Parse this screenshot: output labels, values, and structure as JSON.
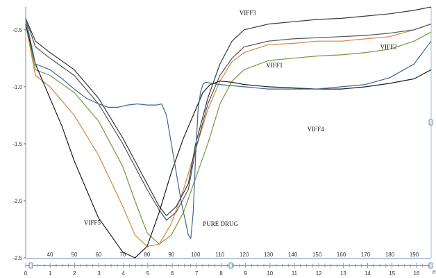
{
  "chart_data": {
    "type": "line",
    "xlabel": "",
    "ylabel": "",
    "xlim": [
      30,
      197
    ],
    "ylim": [
      -2.5,
      -0.3
    ],
    "grid": false,
    "top_axis": {
      "ticks": [
        40,
        50,
        60,
        70,
        80,
        90,
        100,
        110,
        120,
        130,
        140,
        150,
        160,
        170,
        180,
        190
      ]
    },
    "y_ticks": [
      {
        "value": -0.5,
        "label": "-0.5"
      },
      {
        "value": -1.0,
        "label": "-1.0"
      },
      {
        "value": -1.5,
        "label": "-1.5"
      },
      {
        "value": -2.0,
        "label": "-2.0"
      },
      {
        "value": -2.5,
        "label": "-2.5"
      }
    ],
    "bottom_axis": {
      "ticks": [
        "0",
        "1",
        "2",
        "3",
        "4",
        "5",
        "6",
        "7",
        "8",
        "9",
        "10",
        "11",
        "12",
        "13",
        "14",
        "15",
        "16"
      ],
      "range": [
        0,
        16.6
      ],
      "unit": "m"
    },
    "series": [
      {
        "name": "VIFF1",
        "color": "#6f9a3c",
        "x": [
          30,
          34,
          40,
          50,
          60,
          70,
          75,
          80,
          85,
          90,
          95,
          100,
          105,
          110,
          115,
          120,
          130,
          140,
          150,
          160,
          170,
          180,
          190,
          197
        ],
        "y": [
          -0.45,
          -0.85,
          -0.9,
          -1.05,
          -1.3,
          -1.7,
          -2.0,
          -2.28,
          -2.38,
          -2.3,
          -2.1,
          -1.8,
          -1.5,
          -1.15,
          -0.95,
          -0.85,
          -0.77,
          -0.75,
          -0.73,
          -0.72,
          -0.7,
          -0.67,
          -0.6,
          -0.52
        ]
      },
      {
        "name": "VIFF2",
        "color": "#d8843c",
        "x": [
          30,
          34,
          40,
          50,
          60,
          70,
          75,
          80,
          85,
          90,
          95,
          100,
          105,
          110,
          115,
          120,
          130,
          140,
          150,
          160,
          170,
          180,
          190,
          197
        ],
        "y": [
          -0.45,
          -0.9,
          -1.0,
          -1.25,
          -1.6,
          -2.05,
          -2.3,
          -2.4,
          -2.38,
          -2.2,
          -1.9,
          -1.55,
          -1.2,
          -0.95,
          -0.78,
          -0.7,
          -0.63,
          -0.62,
          -0.6,
          -0.6,
          -0.58,
          -0.56,
          -0.5,
          -0.45
        ]
      },
      {
        "name": "VIFF3",
        "color": "#3a3a3a",
        "x": [
          30,
          34,
          40,
          50,
          60,
          70,
          80,
          85,
          88,
          92,
          97,
          100,
          105,
          110,
          115,
          120,
          130,
          140,
          150,
          160,
          170,
          180,
          190,
          197
        ],
        "y": [
          -0.4,
          -0.6,
          -0.7,
          -0.85,
          -1.1,
          -1.45,
          -1.85,
          -2.05,
          -2.13,
          -2.05,
          -1.85,
          -1.5,
          -1.1,
          -0.8,
          -0.6,
          -0.5,
          -0.45,
          -0.43,
          -0.41,
          -0.4,
          -0.38,
          -0.36,
          -0.33,
          -0.3
        ]
      },
      {
        "name": "VIFF4",
        "color": "#4d5460",
        "x": [
          30,
          34,
          40,
          50,
          60,
          70,
          80,
          85,
          88,
          92,
          97,
          100,
          105,
          110,
          115,
          120,
          130,
          140,
          150,
          160,
          170,
          180,
          190,
          197
        ],
        "y": [
          -0.4,
          -0.65,
          -0.75,
          -0.9,
          -1.15,
          -1.5,
          -1.9,
          -2.08,
          -2.17,
          -2.1,
          -1.9,
          -1.55,
          -1.15,
          -0.9,
          -0.75,
          -0.65,
          -0.6,
          -0.58,
          -0.57,
          -0.56,
          -0.55,
          -0.53,
          -0.5,
          -0.45
        ]
      },
      {
        "name": "VIFF5",
        "color": "#1c1c1c",
        "x": [
          30,
          34,
          40,
          45,
          50,
          55,
          60,
          65,
          70,
          75,
          80,
          85,
          90,
          95,
          100,
          103,
          106,
          110,
          115,
          120,
          130,
          140,
          150,
          160,
          170,
          180,
          190,
          197
        ],
        "y": [
          -0.45,
          -0.8,
          -1.1,
          -1.35,
          -1.65,
          -1.9,
          -2.15,
          -2.3,
          -2.45,
          -2.5,
          -2.4,
          -2.1,
          -1.75,
          -1.45,
          -1.2,
          -1.05,
          -0.98,
          -0.95,
          -0.96,
          -0.98,
          -1.0,
          -1.01,
          -1.02,
          -1.02,
          -1.0,
          -0.97,
          -0.93,
          -0.85
        ]
      },
      {
        "name": "PURE DRUG",
        "color": "#3c6496",
        "x": [
          30,
          34,
          40,
          45,
          50,
          55,
          60,
          64,
          68,
          72,
          76,
          80,
          84,
          86,
          88,
          90,
          92,
          94,
          96,
          97,
          98,
          99,
          100,
          101,
          102,
          103,
          104,
          110,
          120,
          130,
          140,
          150,
          160,
          170,
          180,
          190,
          197
        ],
        "y": [
          -0.4,
          -0.8,
          -0.85,
          -0.93,
          -1.02,
          -1.1,
          -1.15,
          -1.18,
          -1.18,
          -1.16,
          -1.15,
          -1.16,
          -1.16,
          -1.15,
          -1.25,
          -1.5,
          -1.75,
          -2.0,
          -2.2,
          -2.3,
          -2.33,
          -2.1,
          -1.6,
          -1.2,
          -1.05,
          -0.98,
          -0.96,
          -0.98,
          -1.0,
          -1.02,
          -1.02,
          -1.02,
          -1.0,
          -0.98,
          -0.92,
          -0.8,
          -0.6
        ]
      }
    ],
    "labels": [
      {
        "text": "VIFF3",
        "x": 118,
        "y": -0.37
      },
      {
        "text": "VIFF2",
        "x": 176,
        "y": -0.67
      },
      {
        "text": "VIFF1",
        "x": 129,
        "y": -0.83
      },
      {
        "text": "VIFF4",
        "x": 146,
        "y": -1.39
      },
      {
        "text": "VIFF5",
        "x": 54,
        "y": -2.21
      },
      {
        "text": "PURE DRUG",
        "x": 103,
        "y": -2.22
      }
    ]
  }
}
